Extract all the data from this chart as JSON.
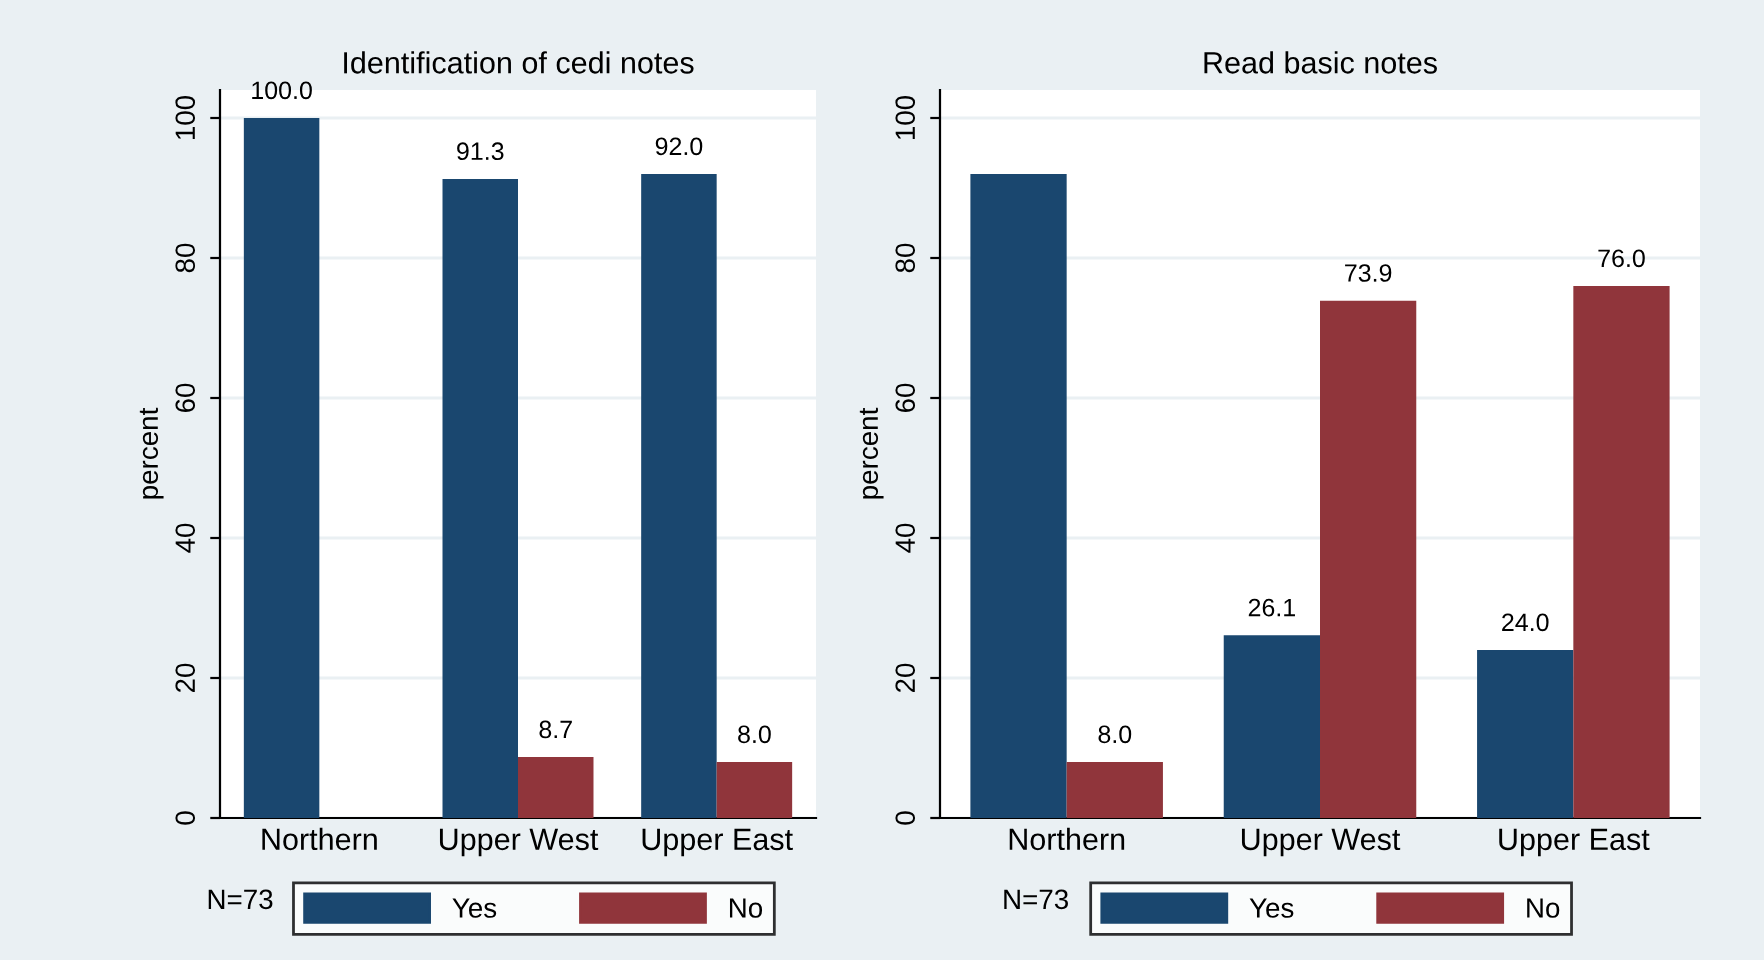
{
  "chart_data": [
    {
      "type": "bar",
      "title": "Identification of cedi notes",
      "ylabel": "percent",
      "categories": [
        "Northern",
        "Upper West",
        "Upper East"
      ],
      "ylim": [
        0,
        104
      ],
      "yticks": [
        0,
        20,
        40,
        60,
        80,
        100
      ],
      "grid": "y",
      "legend": "bottom",
      "annotations": [
        "N=73"
      ],
      "series": [
        {
          "name": "Yes",
          "color": "#1a476f",
          "values": [
            100.0,
            91.3,
            92.0
          ],
          "value_labels": [
            "100.0",
            "91.3",
            "92.0"
          ]
        },
        {
          "name": "No",
          "color": "#90353b",
          "values": [
            null,
            8.7,
            8.0
          ],
          "value_labels": [
            null,
            "8.7",
            "8.0"
          ]
        }
      ]
    },
    {
      "type": "bar",
      "title": "Read basic notes",
      "ylabel": "percent",
      "categories": [
        "Northern",
        "Upper West",
        "Upper East"
      ],
      "ylim": [
        0,
        104
      ],
      "yticks": [
        0,
        20,
        40,
        60,
        80,
        100
      ],
      "grid": "y",
      "legend": "bottom",
      "annotations": [
        "N=73"
      ],
      "series": [
        {
          "name": "Yes",
          "color": "#1a476f",
          "values": [
            92.0,
            26.1,
            24.0
          ],
          "value_labels": [
            null,
            "26.1",
            "24.0"
          ]
        },
        {
          "name": "No",
          "color": "#90353b",
          "values": [
            8.0,
            73.9,
            76.0
          ],
          "value_labels": [
            "8.0",
            "73.9",
            "76.0"
          ]
        }
      ]
    }
  ]
}
